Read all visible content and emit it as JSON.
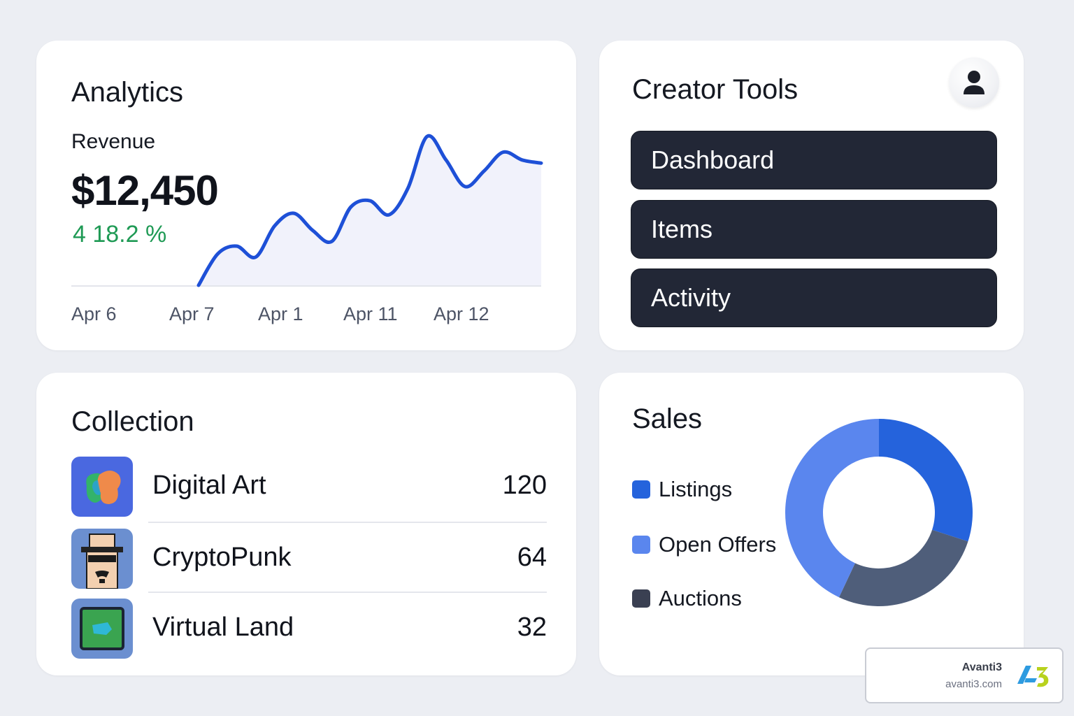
{
  "analytics": {
    "title": "Analytics",
    "revenue_label": "Revenue",
    "revenue_value": "$12,450",
    "revenue_change": "4 18.2 %"
  },
  "chart_data": {
    "type": "area",
    "title": "",
    "xlabel": "",
    "ylabel": "",
    "x_ticks": [
      "Apr 6",
      "Apr 7",
      "Apr 1",
      "Apr 11",
      "Apr 12"
    ],
    "x": [
      0,
      1,
      2,
      3,
      4,
      5,
      6,
      7,
      8,
      9,
      10,
      11,
      12,
      13,
      14,
      15,
      16,
      17,
      18
    ],
    "values": [
      0,
      20,
      25,
      18,
      38,
      46,
      35,
      28,
      50,
      54,
      45,
      62,
      95,
      80,
      63,
      73,
      85,
      80,
      78
    ],
    "grid": false,
    "legend": "none",
    "colors": {
      "line": "#1e50d7",
      "fill": "#f1f2fb"
    }
  },
  "creator": {
    "title": "Creator Tools",
    "avatar_icon": "user-avatar-icon",
    "nav": [
      {
        "label": "Dashboard"
      },
      {
        "label": "Items"
      },
      {
        "label": "Activity"
      }
    ]
  },
  "collection": {
    "title": "Collection",
    "items": [
      {
        "name": "Digital Art",
        "count": "120",
        "icon": "digital-art-icon"
      },
      {
        "name": "CryptoPunk",
        "count": "64",
        "icon": "cryptopunk-icon"
      },
      {
        "name": "Virtual Land",
        "count": "32",
        "icon": "virtual-land-icon"
      }
    ]
  },
  "sales": {
    "title": "Sales",
    "chart_data": {
      "type": "pie",
      "categories": [
        "Listings",
        "Open Offers",
        "Auctions"
      ],
      "values": [
        30,
        43,
        27
      ],
      "colors": [
        "#2563dc",
        "#5a86ee",
        "#4f5e7a"
      ],
      "legend": "left"
    }
  },
  "watermark": {
    "name": "Avanti3",
    "url": "avanti3.com"
  }
}
